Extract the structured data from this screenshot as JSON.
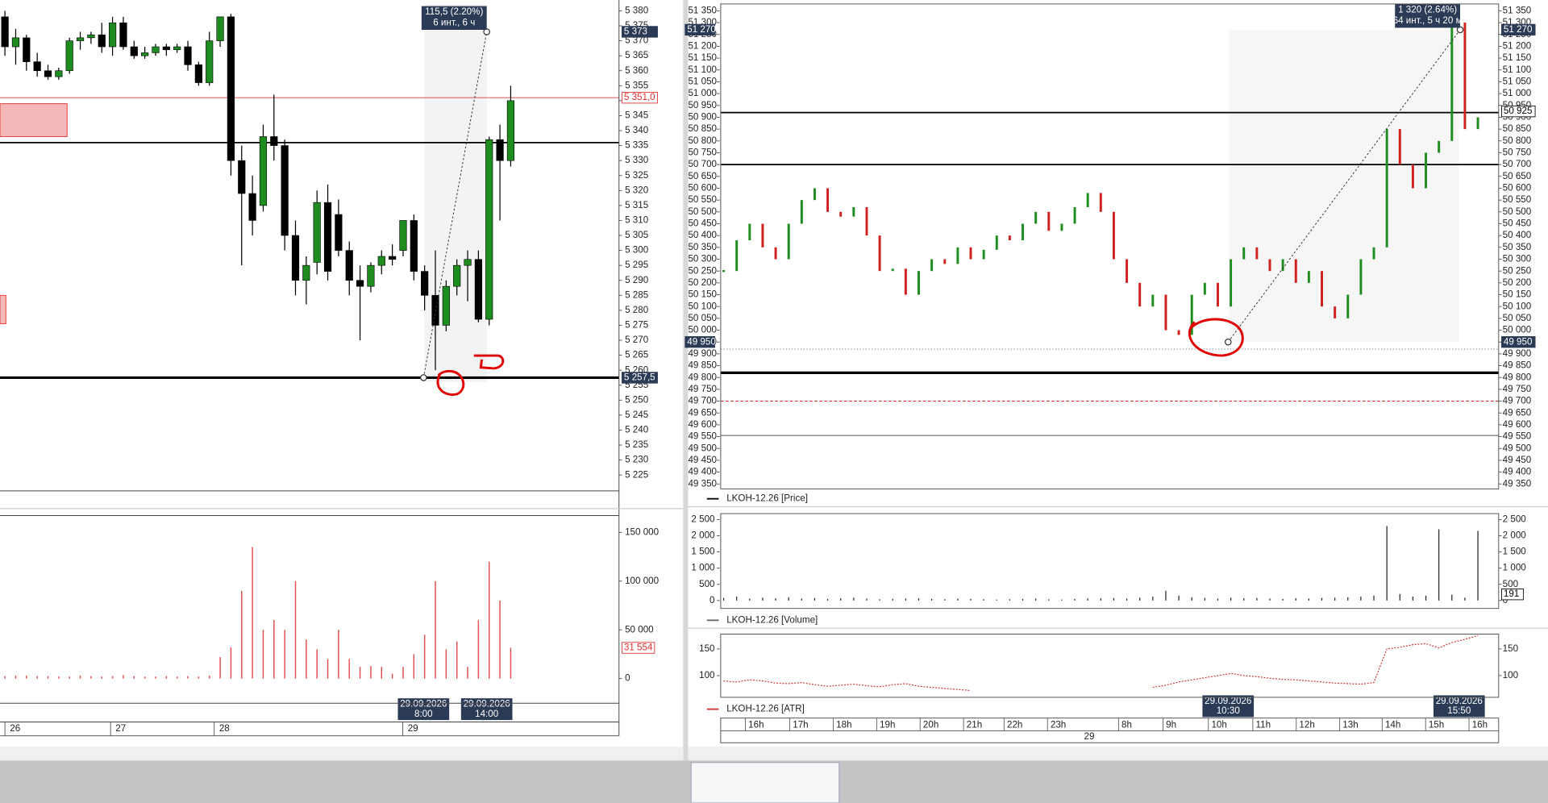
{
  "left_chart": {
    "ylim": [
      5219.7,
      5382.3
    ],
    "price_ticks": [
      {
        "value": 5380,
        "label": "5 380"
      },
      {
        "value": 5375,
        "label": "5 375"
      },
      {
        "value": 5370,
        "label": "5 370"
      },
      {
        "value": 5365,
        "label": "5 365"
      },
      {
        "value": 5360,
        "label": "5 360"
      },
      {
        "value": 5355,
        "label": "5 355"
      },
      {
        "value": 5350,
        "label": "5 350"
      },
      {
        "value": 5345,
        "label": "5 345"
      },
      {
        "value": 5340,
        "label": "5 340"
      },
      {
        "value": 5335,
        "label": "5 335"
      },
      {
        "value": 5330,
        "label": "5 330"
      },
      {
        "value": 5325,
        "label": "5 325"
      },
      {
        "value": 5320,
        "label": "5 320"
      },
      {
        "value": 5315,
        "label": "5 315"
      },
      {
        "value": 5310,
        "label": "5 310"
      },
      {
        "value": 5305,
        "label": "5 305"
      },
      {
        "value": 5300,
        "label": "5 300"
      },
      {
        "value": 5295,
        "label": "5 295"
      },
      {
        "value": 5290,
        "label": "5 290"
      },
      {
        "value": 5285,
        "label": "5 285"
      },
      {
        "value": 5280,
        "label": "5 280"
      },
      {
        "value": 5275,
        "label": "5 275"
      },
      {
        "value": 5270,
        "label": "5 270"
      },
      {
        "value": 5265,
        "label": "5 265"
      },
      {
        "value": 5260,
        "label": "5 260"
      },
      {
        "value": 5255,
        "label": "5 255"
      },
      {
        "value": 5250,
        "label": "5 250"
      },
      {
        "value": 5245,
        "label": "5 245"
      },
      {
        "value": 5240,
        "label": "5 240"
      },
      {
        "value": 5235,
        "label": "5 235"
      },
      {
        "value": 5230,
        "label": "5 230"
      },
      {
        "value": 5225,
        "label": "5 225"
      }
    ],
    "zones": [
      {
        "from": 5338,
        "to": 5349
      },
      {
        "from": 5275.5,
        "to": 5285
      }
    ],
    "levels": [
      {
        "value": 5351,
        "color": "#e05050",
        "style": "thin"
      },
      {
        "value": 5336,
        "color": "#000000",
        "style": "solid"
      },
      {
        "value": 5257.5,
        "color": "#000000",
        "style": "thick"
      }
    ],
    "candles": {
      "up_color": "#1e8c1e",
      "down_color": "#000000",
      "open": [
        5378,
        5368,
        5371,
        5363,
        5360,
        5358,
        5360,
        5370,
        5371,
        5372,
        5368,
        5376,
        5368,
        5365,
        5366,
        5368,
        5367,
        5368,
        5362,
        5356,
        5370,
        5378,
        5330,
        5319,
        5315,
        5338,
        5335,
        5305,
        5290,
        5296,
        5316,
        5312,
        5300,
        5290,
        5288,
        5295,
        5298,
        5300,
        5310,
        5293,
        5285,
        5275,
        5288,
        5295,
        5297,
        5277,
        5337,
        5330
      ],
      "high": [
        5380,
        5374,
        5372,
        5366,
        5362,
        5361,
        5371,
        5373,
        5373,
        5376,
        5378,
        5378,
        5370,
        5368,
        5369,
        5369,
        5369,
        5370,
        5363,
        5373,
        5378,
        5379,
        5335,
        5325,
        5342,
        5352,
        5337,
        5310,
        5298,
        5320,
        5322,
        5317,
        5303,
        5295,
        5296,
        5300,
        5302,
        5310,
        5312,
        5295,
        5300,
        5290,
        5297,
        5300,
        5300,
        5338,
        5342,
        5355
      ],
      "low": [
        5365,
        5362,
        5360,
        5358,
        5357,
        5357,
        5359,
        5367,
        5369,
        5366,
        5365,
        5367,
        5364,
        5364,
        5365,
        5365,
        5366,
        5360,
        5355,
        5355,
        5368,
        5325,
        5295,
        5305,
        5313,
        5330,
        5300,
        5285,
        5282,
        5292,
        5290,
        5298,
        5285,
        5270,
        5286,
        5292,
        5295,
        5298,
        5290,
        5280,
        5260,
        5273,
        5285,
        5283,
        5276,
        5275,
        5310,
        5328
      ],
      "close": [
        5368,
        5371,
        5363,
        5360,
        5358,
        5360,
        5370,
        5371,
        5372,
        5368,
        5376,
        5368,
        5365,
        5366,
        5368,
        5367,
        5368,
        5362,
        5356,
        5370,
        5378,
        5330,
        5319,
        5310,
        5338,
        5335,
        5305,
        5290,
        5295,
        5316,
        5293,
        5300,
        5290,
        5288,
        5295,
        5298,
        5297,
        5310,
        5293,
        5285,
        5275,
        5288,
        5295,
        5297,
        5277,
        5337,
        5330,
        5350
      ]
    },
    "measure": {
      "from": 5257.5,
      "to": 5373,
      "label": "115,5 (2.20%)",
      "sublabel": "6 инт., 6 ч"
    },
    "price_badges": [
      {
        "value": 5373,
        "label": "5 373",
        "style": "dark"
      },
      {
        "value": 5351,
        "label": "5 351,0",
        "style": "red"
      },
      {
        "value": 5257.5,
        "label": "5 257,5",
        "style": "dark"
      }
    ],
    "volume": {
      "ylim": [
        -25330,
        167230
      ],
      "color": "#e05050",
      "ticks": [
        {
          "value": 150000,
          "label": "150 000"
        },
        {
          "value": 100000,
          "label": "100 000"
        },
        {
          "value": 50000,
          "label": "50 000"
        },
        0
      ],
      "values": [
        2500,
        3000,
        3000,
        2500,
        2500,
        2000,
        2000,
        3000,
        2500,
        2000,
        2500,
        3500,
        2500,
        2000,
        2000,
        2500,
        2000,
        2500,
        2000,
        3000,
        22000,
        32000,
        90000,
        135000,
        50000,
        60000,
        50000,
        100000,
        40000,
        30000,
        20000,
        50000,
        20000,
        12000,
        13000,
        12000,
        5000,
        12000,
        25000,
        45000,
        100000,
        30000,
        38000,
        12000,
        60000,
        120000,
        80000,
        31554
      ],
      "badge": {
        "value": 31554,
        "label": "31 554"
      }
    },
    "time_labels": [
      "26",
      "27",
      "28",
      "29"
    ],
    "date_badges": [
      {
        "date": "29.09.2026",
        "time": "8:00"
      },
      {
        "date": "29.09.2026",
        "time": "14:00"
      }
    ]
  },
  "right_chart": {
    "ylim": [
      49329,
      51379
    ],
    "price_ticks": [
      {
        "value": 51350,
        "label": "51 350"
      },
      {
        "value": 51300,
        "label": "51 300"
      },
      {
        "value": 51250,
        "label": "51 250"
      },
      {
        "value": 51200,
        "label": "51 200"
      },
      {
        "value": 51150,
        "label": "51 150"
      },
      {
        "value": 51100,
        "label": "51 100"
      },
      {
        "value": 51050,
        "label": "51 050"
      },
      {
        "value": 51000,
        "label": "51 000"
      },
      {
        "value": 50950,
        "label": "50 950"
      },
      {
        "value": 50900,
        "label": "50 900"
      },
      {
        "value": 50850,
        "label": "50 850"
      },
      {
        "value": 50800,
        "label": "50 800"
      },
      {
        "value": 50750,
        "label": "50 750"
      },
      {
        "value": 50700,
        "label": "50 700"
      },
      {
        "value": 50650,
        "label": "50 650"
      },
      {
        "value": 50600,
        "label": "50 600"
      },
      {
        "value": 50550,
        "label": "50 550"
      },
      {
        "value": 50500,
        "label": "50 500"
      },
      {
        "value": 50450,
        "label": "50 450"
      },
      {
        "value": 50400,
        "label": "50 400"
      },
      {
        "value": 50350,
        "label": "50 350"
      },
      {
        "value": 50300,
        "label": "50 300"
      },
      {
        "value": 50250,
        "label": "50 250"
      },
      {
        "value": 50200,
        "label": "50 200"
      },
      {
        "value": 50150,
        "label": "50 150"
      },
      {
        "value": 50100,
        "label": "50 100"
      },
      {
        "value": 50050,
        "label": "50 050"
      },
      {
        "value": 50000,
        "label": "50 000"
      },
      {
        "value": 49950,
        "label": "49 950"
      },
      {
        "value": 49900,
        "label": "49 900"
      },
      {
        "value": 49850,
        "label": "49 850"
      },
      {
        "value": 49800,
        "label": "49 800"
      },
      {
        "value": 49750,
        "label": "49 750"
      },
      {
        "value": 49700,
        "label": "49 700"
      },
      {
        "value": 49650,
        "label": "49 650"
      },
      {
        "value": 49600,
        "label": "49 600"
      },
      {
        "value": 49550,
        "label": "49 550"
      },
      {
        "value": 49500,
        "label": "49 500"
      },
      {
        "value": 49450,
        "label": "49 450"
      },
      {
        "value": 49400,
        "label": "49 400"
      },
      {
        "value": 49350,
        "label": "49 350"
      }
    ],
    "levels": [
      {
        "value": 50920,
        "color": "#000000",
        "style": "solid"
      },
      {
        "value": 50700,
        "color": "#000000",
        "style": "solid"
      },
      {
        "value": 49920,
        "color": "#777777",
        "style": "dotted"
      },
      {
        "value": 49820,
        "color": "#000000",
        "style": "thick"
      },
      {
        "value": 49700,
        "color": "#d03030",
        "style": "dashed"
      },
      {
        "value": 49555,
        "color": "#555555",
        "style": "thin"
      }
    ],
    "closes": {
      "up_color": "#1e8c1e",
      "down_color": "#d02020",
      "values": [
        50250,
        50380,
        50450,
        50350,
        50300,
        50450,
        50550,
        50600,
        50500,
        50480,
        50520,
        50400,
        50250,
        50260,
        50150,
        50250,
        50300,
        50280,
        50350,
        50300,
        50340,
        50400,
        50380,
        50450,
        50500,
        50420,
        50450,
        50520,
        50580,
        50500,
        50300,
        50200,
        50100,
        50150,
        50000,
        49980,
        50150,
        50200,
        50100,
        50300,
        50350,
        50300,
        50250,
        50300,
        50200,
        50250,
        50100,
        50050,
        50150,
        50300,
        50350,
        50850,
        50700,
        50600,
        50750,
        50800,
        51300,
        50850,
        50900
      ]
    },
    "measure": {
      "from": 49950,
      "to": 51270,
      "label": "1 320 (2.64%)",
      "sublabel": "64 инт., 5 ч 20 м"
    },
    "price_badges": [
      {
        "value": 51270,
        "label": "51 270",
        "style": "dark"
      },
      {
        "value": 50925,
        "label": "50 925",
        "style": "light"
      },
      {
        "value": 49950,
        "label": "49 950",
        "style": "dark"
      }
    ],
    "legend_price": "LKOH-12.26 [Price]",
    "volume": {
      "ylim": [
        -244,
        2683
      ],
      "color": "#222222",
      "ticks": [
        {
          "value": 2500,
          "label": "2 500"
        },
        {
          "value": 2000,
          "label": "2 000"
        },
        {
          "value": 1500,
          "label": "1 500"
        },
        {
          "value": 1000,
          "label": "1 000"
        },
        500,
        0
      ],
      "values": [
        80,
        120,
        60,
        90,
        70,
        100,
        60,
        80,
        50,
        70,
        90,
        60,
        40,
        50,
        60,
        70,
        50,
        40,
        60,
        50,
        40,
        30,
        40,
        50,
        60,
        40,
        30,
        50,
        60,
        70,
        80,
        60,
        90,
        120,
        300,
        150,
        100,
        80,
        60,
        90,
        70,
        80,
        60,
        50,
        70,
        60,
        80,
        90,
        100,
        120,
        150,
        2300,
        200,
        120,
        150,
        2200,
        180,
        90,
        2150
      ],
      "badge": {
        "value": 191,
        "label": "191"
      }
    },
    "legend_volume": "LKOH-12.26 [Volume]",
    "atr": {
      "ylim": [
        59.3,
        177.8
      ],
      "color": "#d03030",
      "ticks": [
        150,
        100
      ],
      "values": [
        90,
        88,
        92,
        90,
        86,
        85,
        87,
        83,
        80,
        82,
        84,
        81,
        79,
        83,
        85,
        80,
        78,
        76,
        74,
        72,
        null,
        null,
        null,
        null,
        null,
        null,
        null,
        null,
        null,
        null,
        null,
        null,
        null,
        78,
        82,
        88,
        92,
        96,
        100,
        104,
        100,
        98,
        95,
        93,
        92,
        90,
        88,
        86,
        85,
        84,
        87,
        150,
        153,
        158,
        160,
        152,
        162,
        168,
        175
      ]
    },
    "legend_atr": "LKOH-12.26 [ATR]",
    "time_labels": [
      "16h",
      "17h",
      "18h",
      "19h",
      "20h",
      "21h",
      "22h",
      "23h",
      "8h",
      "9h",
      "10h",
      "11h",
      "12h",
      "13h",
      "14h",
      "15h",
      "16h"
    ],
    "day_label": "29",
    "date_badges": [
      {
        "date": "29.09.2026",
        "time": "10:30"
      },
      {
        "date": "29.09.2026",
        "time": "15:50"
      }
    ]
  }
}
